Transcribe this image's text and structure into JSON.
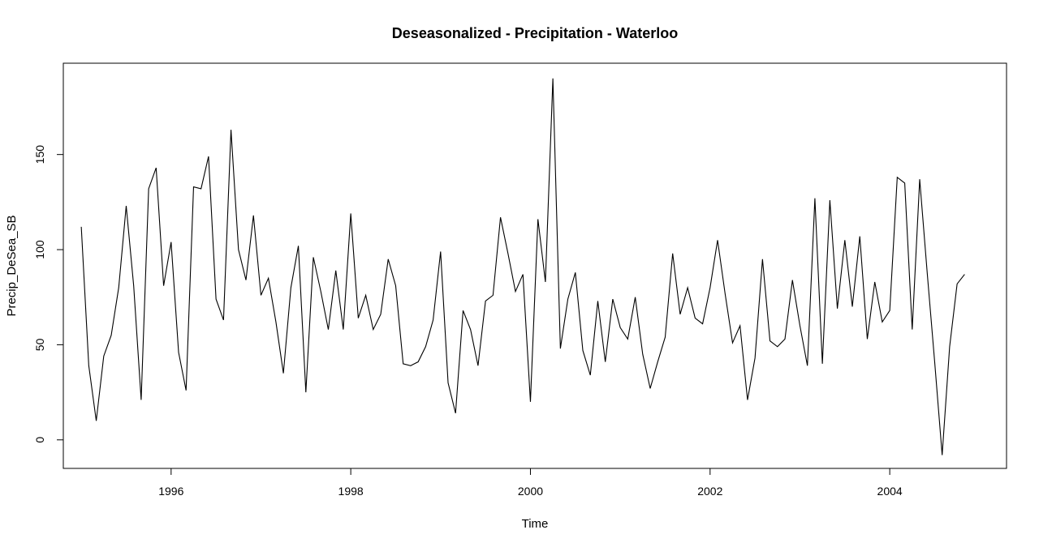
{
  "chart_data": {
    "type": "line",
    "title": "Deseasonalized - Precipitation - Waterloo",
    "xlabel": "Time",
    "ylabel": "Precip_DeSea_SB",
    "x_start": 1995,
    "frequency": 12,
    "xlim": [
      1994.8,
      2005.3
    ],
    "ylim": [
      -15,
      198
    ],
    "x_ticks": [
      1996,
      1998,
      2000,
      2002,
      2004
    ],
    "y_ticks": [
      0,
      50,
      100,
      150
    ],
    "line_color": "#000000",
    "grid": false,
    "values": [
      112,
      39,
      10,
      44,
      55,
      80,
      123,
      81,
      21,
      132,
      143,
      81,
      104,
      46,
      26,
      133,
      132,
      149,
      74,
      63,
      163,
      100,
      84,
      118,
      76,
      85,
      62,
      35,
      80,
      102,
      25,
      96,
      78,
      58,
      89,
      58,
      119,
      64,
      76,
      58,
      66,
      95,
      81,
      40,
      39,
      41,
      49,
      63,
      99,
      30,
      14,
      68,
      58,
      39,
      73,
      76,
      117,
      98,
      78,
      87,
      20,
      116,
      83,
      190,
      48,
      74,
      88,
      47,
      34,
      73,
      41,
      74,
      59,
      53,
      75,
      45,
      27,
      41,
      54,
      98,
      66,
      80,
      64,
      61,
      80,
      105,
      77,
      51,
      60,
      21,
      43,
      95,
      52,
      49,
      53,
      84,
      60,
      39,
      127,
      40,
      126,
      69,
      105,
      70,
      107,
      53,
      83,
      62,
      68,
      138,
      135,
      58,
      137,
      88,
      41,
      -8,
      49,
      82,
      87
    ]
  }
}
